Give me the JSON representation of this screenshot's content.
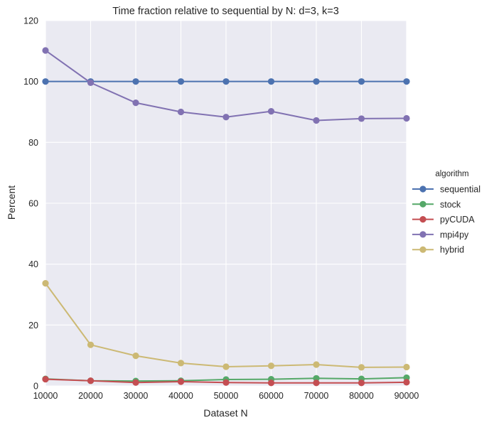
{
  "chart_data": {
    "type": "line",
    "title": "Time fraction relative to sequential by N: d=3, k=3",
    "xlabel": "Dataset N",
    "ylabel": "Percent",
    "x": [
      10000,
      20000,
      30000,
      40000,
      50000,
      60000,
      70000,
      80000,
      90000
    ],
    "x_tick_labels": [
      "10000",
      "20000",
      "30000",
      "40000",
      "50000",
      "60000",
      "70000",
      "80000",
      "90000"
    ],
    "ylim": [
      0,
      120
    ],
    "y_ticks": [
      0,
      20,
      40,
      60,
      80,
      100,
      120
    ],
    "y_tick_labels": [
      "0",
      "20",
      "40",
      "60",
      "80",
      "100",
      "120"
    ],
    "grid": true,
    "background": "#eaeaf2",
    "legend_title": "algorithm",
    "legend_position": "right",
    "series": [
      {
        "name": "sequential",
        "color": "#4c72b0",
        "values": [
          100,
          100,
          100,
          100,
          100,
          100,
          100,
          100,
          100
        ]
      },
      {
        "name": "stock",
        "color": "#55a868",
        "values": [
          2.3,
          1.7,
          1.6,
          1.7,
          2.1,
          2.2,
          2.5,
          2.3,
          2.7
        ]
      },
      {
        "name": "pyCUDA",
        "color": "#c44e52",
        "values": [
          2.2,
          1.7,
          1.1,
          1.4,
          1.1,
          1.0,
          1.0,
          1.0,
          1.2
        ]
      },
      {
        "name": "mpi4py",
        "color": "#8172b2",
        "values": [
          110.2,
          99.6,
          93.0,
          90.0,
          88.3,
          90.2,
          87.2,
          87.8,
          87.9
        ]
      },
      {
        "name": "hybrid",
        "color": "#ccb974",
        "values": [
          33.7,
          13.5,
          9.9,
          7.5,
          6.3,
          6.6,
          7.0,
          6.1,
          6.2
        ]
      }
    ]
  }
}
